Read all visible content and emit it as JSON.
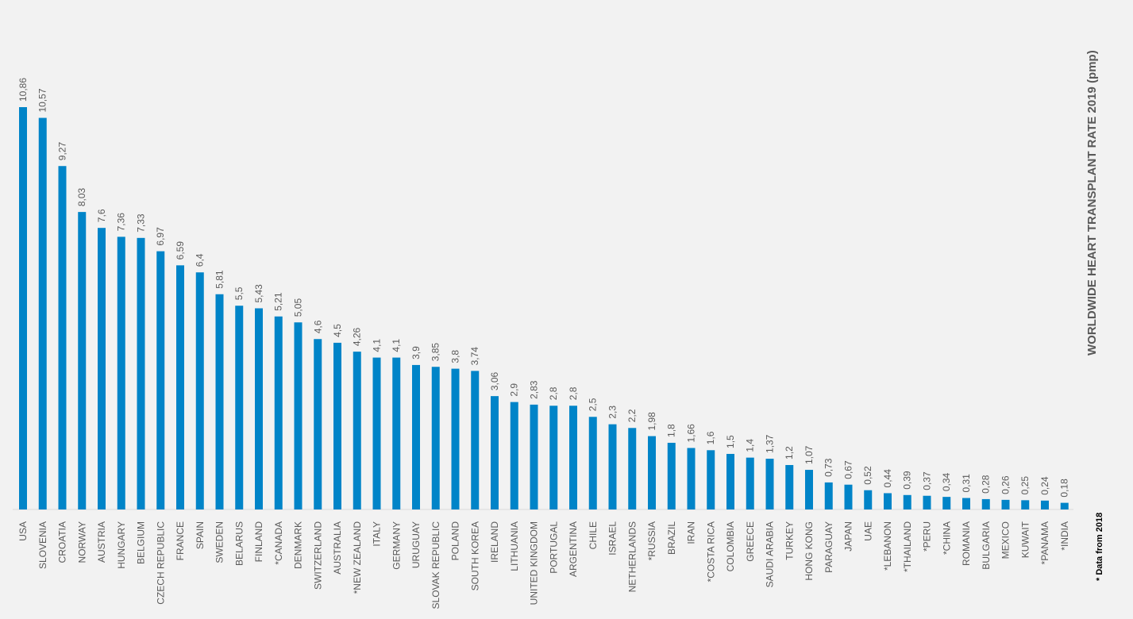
{
  "chart_data": {
    "type": "bar",
    "title": "WORLDWIDE HEART TRANSPLANT RATE 2019 (pmp)",
    "footnote": "* Data from 2018",
    "bar_color": "#0084c8",
    "background": "#f2f2f2",
    "label_color": "#595959",
    "axis_color": "#d9d9d9",
    "ylim": [
      0,
      10.86
    ],
    "grid": false,
    "legend": "none",
    "categories": [
      "USA",
      "SLOVENIA",
      "CROATIA",
      "NORWAY",
      "AUSTRIA",
      "HUNGARY",
      "BELGIUM",
      "CZECH REPUBLIC",
      "FRANCE",
      "SPAIN",
      "SWEDEN",
      "BELARUS",
      "FINLAND",
      "*CANADA",
      "DENMARK",
      "SWITZERLAND",
      "AUSTRALIA",
      "*NEW ZEALAND",
      "ITALY",
      "GERMANY",
      "URUGUAY",
      "SLOVAK REPUBLIC",
      "POLAND",
      "SOUTH KOREA",
      "IRELAND",
      "LITHUANIA",
      "UNITED KINGDOM",
      "PORTUGAL",
      "ARGENTINA",
      "CHILE",
      "ISRAEL",
      "NETHERLANDS",
      "*RUSSIA",
      "BRAZIL",
      "IRAN",
      "*COSTA RICA",
      "COLOMBIA",
      "GREECE",
      "SAUDI ARABIA",
      "TURKEY",
      "HONG KONG",
      "PARAGUAY",
      "JAPAN",
      "UAE",
      "*LEBANON",
      "*THAILAND",
      "*PERU",
      "*CHINA",
      "ROMANIA",
      "BULGARIA",
      "MEXICO",
      "KUWAIT",
      "*PANAMA",
      "*INDIA"
    ],
    "values": [
      10.86,
      10.57,
      9.27,
      8.03,
      7.6,
      7.36,
      7.33,
      6.97,
      6.59,
      6.4,
      5.81,
      5.5,
      5.43,
      5.21,
      5.05,
      4.6,
      4.5,
      4.26,
      4.1,
      4.1,
      3.9,
      3.85,
      3.8,
      3.74,
      3.06,
      2.9,
      2.83,
      2.8,
      2.8,
      2.5,
      2.3,
      2.2,
      1.98,
      1.8,
      1.66,
      1.6,
      1.5,
      1.4,
      1.37,
      1.2,
      1.07,
      0.73,
      0.67,
      0.52,
      0.44,
      0.39,
      0.37,
      0.34,
      0.31,
      0.28,
      0.26,
      0.25,
      0.24,
      0.18
    ],
    "value_labels": [
      "10,86",
      "10,57",
      "9,27",
      "8,03",
      "7,6",
      "7,36",
      "7,33",
      "6,97",
      "6,59",
      "6,4",
      "5,81",
      "5,5",
      "5,43",
      "5,21",
      "5,05",
      "4,6",
      "4,5",
      "4,26",
      "4,1",
      "4,1",
      "3,9",
      "3,85",
      "3,8",
      "3,74",
      "3,06",
      "2,9",
      "2,83",
      "2,8",
      "2,8",
      "2,5",
      "2,3",
      "2,2",
      "1,98",
      "1,8",
      "1,66",
      "1,6",
      "1,5",
      "1,4",
      "1,37",
      "1,2",
      "1,07",
      "0,73",
      "0,67",
      "0,52",
      "0,44",
      "0,39",
      "0,37",
      "0,34",
      "0,31",
      "0,28",
      "0,26",
      "0,25",
      "0,24",
      "0,18"
    ]
  }
}
